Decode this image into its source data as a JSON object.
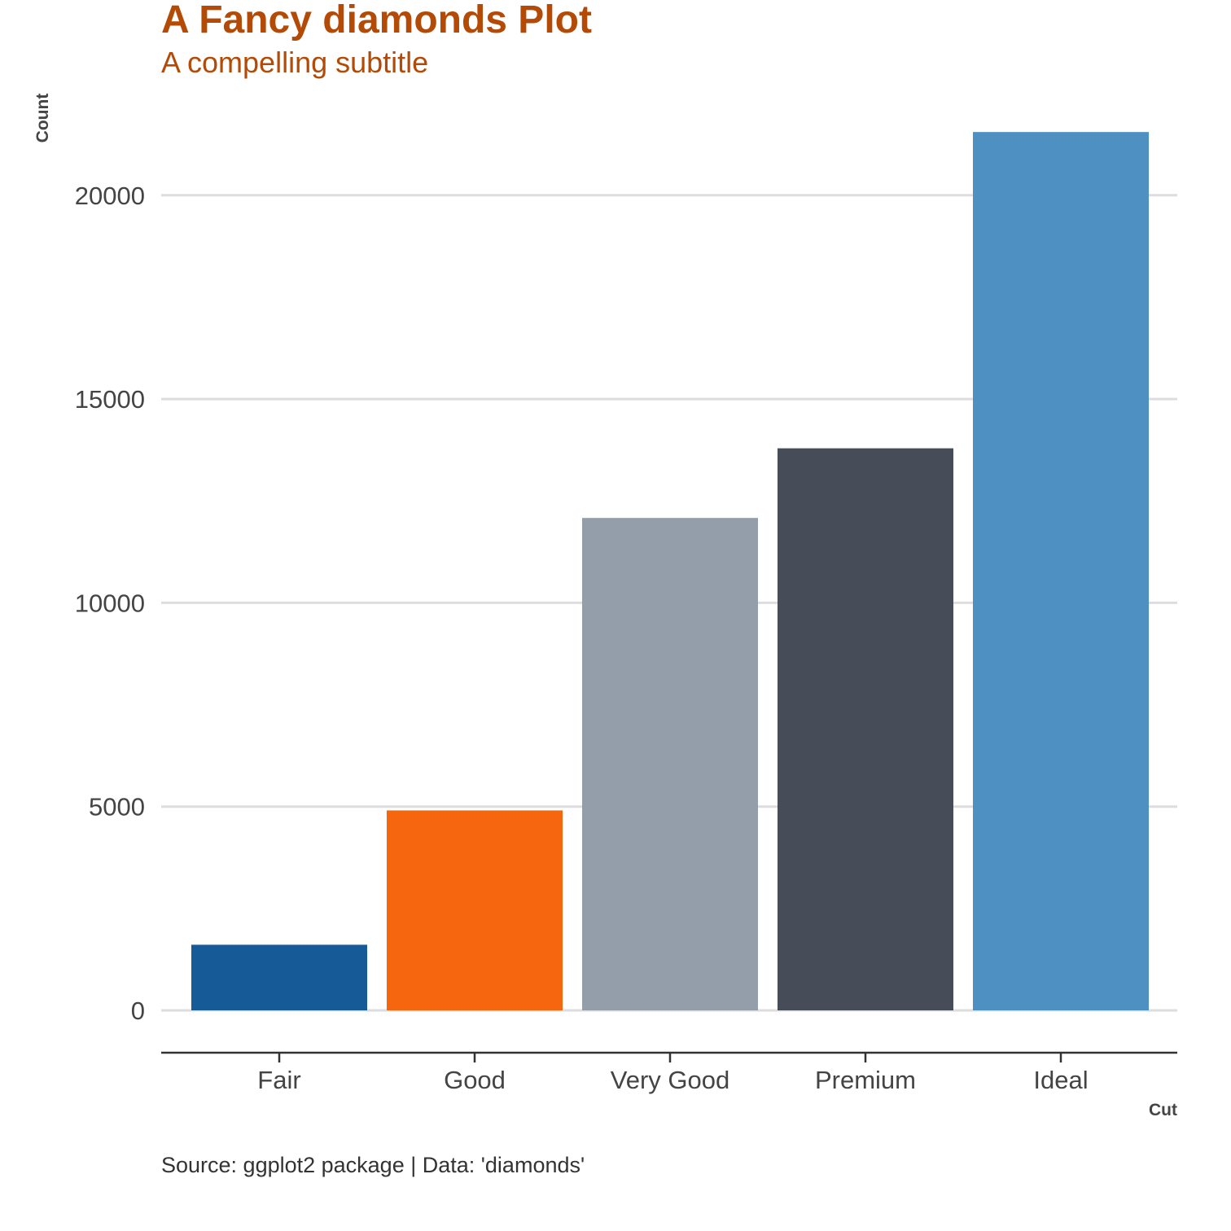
{
  "chart_data": {
    "type": "bar",
    "title": "A Fancy diamonds Plot",
    "subtitle": "A compelling subtitle",
    "xlabel": "Cut",
    "ylabel": "Count",
    "caption": "Source: ggplot2 package | Data: 'diamonds'",
    "categories": [
      "Fair",
      "Good",
      "Very Good",
      "Premium",
      "Ideal"
    ],
    "values": [
      1610,
      4906,
      12082,
      13791,
      21551
    ],
    "colors": [
      "#165a98",
      "#f6660f",
      "#949daa",
      "#474d58",
      "#4e90c2"
    ],
    "ylim": [
      0,
      22000
    ],
    "yticks": [
      0,
      5000,
      10000,
      15000,
      20000
    ],
    "ytick_labels": [
      "0",
      "5000",
      "10000",
      "15000",
      "20000"
    ],
    "grid": "horizontal major lines",
    "legend": "none",
    "title_color": "#b34a05",
    "gridline_color": "#dddddd",
    "axis_line_color": "#333333"
  }
}
